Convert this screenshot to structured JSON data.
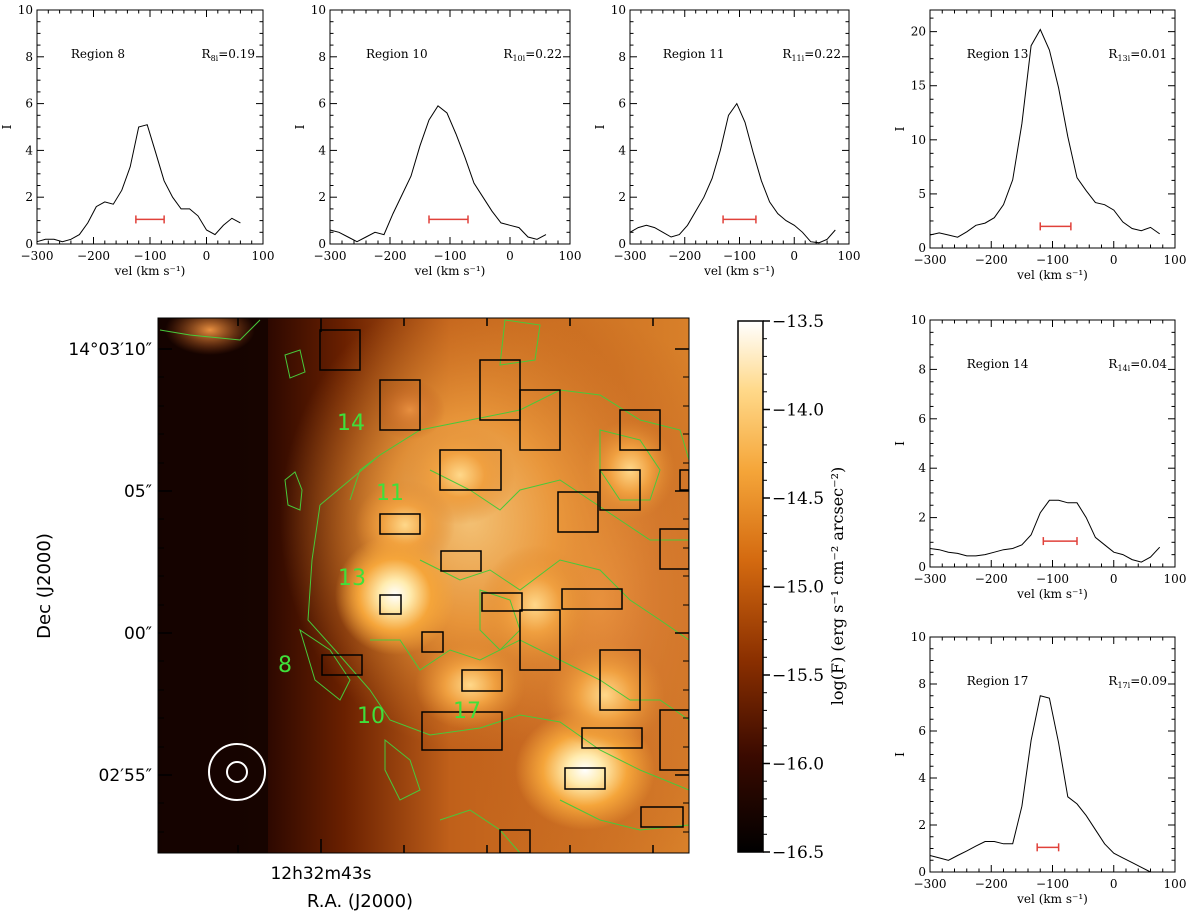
{
  "colors": {
    "profile_line": "#000000",
    "width_bar": "#e0413a",
    "contour_green": "#48c93a",
    "region_box": "#000000",
    "region_label": "#3fe03a",
    "beam": "#ffffff"
  },
  "chart_data": [
    {
      "type": "line",
      "id": "p8",
      "region_label": "Region  8",
      "ratio_label": "R8i=0.19",
      "xlabel": "vel  (km s⁻¹)",
      "ylabel": "I",
      "xlim": [
        -300,
        100
      ],
      "ylim": [
        0,
        10
      ],
      "xticks": [
        -300,
        -200,
        -100,
        0,
        100
      ],
      "yticks": [
        0,
        2,
        4,
        6,
        8,
        10
      ],
      "x": [
        -300,
        -285,
        -270,
        -255,
        -240,
        -225,
        -210,
        -195,
        -180,
        -165,
        -150,
        -135,
        -120,
        -105,
        -90,
        -75,
        -60,
        -45,
        -30,
        -15,
        0,
        15,
        30,
        45,
        60,
        75
      ],
      "y": [
        0.1,
        0.2,
        0.2,
        0.1,
        0.2,
        0.4,
        0.9,
        1.6,
        1.8,
        1.7,
        2.3,
        3.3,
        5.0,
        5.1,
        3.9,
        2.7,
        2.0,
        1.5,
        1.5,
        1.2,
        0.6,
        0.4,
        0.8,
        1.1,
        0.9,
        null
      ],
      "bar": [
        -125,
        -75
      ],
      "bar_y": 1.05
    },
    {
      "type": "line",
      "id": "p10",
      "region_label": "Region  10",
      "ratio_label": "R10i=0.22",
      "xlabel": "vel  (km s⁻¹)",
      "ylabel": "I",
      "xlim": [
        -300,
        100
      ],
      "ylim": [
        0,
        10
      ],
      "xticks": [
        -300,
        -200,
        -100,
        0,
        100
      ],
      "yticks": [
        0,
        2,
        4,
        6,
        8,
        10
      ],
      "x": [
        -300,
        -285,
        -270,
        -255,
        -240,
        -225,
        -210,
        -195,
        -180,
        -165,
        -150,
        -135,
        -120,
        -105,
        -90,
        -75,
        -60,
        -45,
        -30,
        -15,
        0,
        15,
        30,
        45,
        60,
        75
      ],
      "y": [
        0.6,
        0.5,
        0.3,
        0.1,
        0.3,
        0.5,
        0.4,
        1.3,
        2.1,
        2.9,
        4.2,
        5.3,
        5.9,
        5.6,
        4.7,
        3.7,
        2.6,
        2.0,
        1.4,
        0.9,
        0.8,
        0.7,
        0.3,
        0.2,
        0.4,
        null
      ],
      "bar": [
        -135,
        -70
      ],
      "bar_y": 1.05
    },
    {
      "type": "line",
      "id": "p11",
      "region_label": "Region  11",
      "ratio_label": "R11i=0.22",
      "xlabel": "vel  (km s⁻¹)",
      "ylabel": "I",
      "xlim": [
        -300,
        100
      ],
      "ylim": [
        0,
        10
      ],
      "xticks": [
        -300,
        -200,
        -100,
        0,
        100
      ],
      "yticks": [
        0,
        2,
        4,
        6,
        8,
        10
      ],
      "x": [
        -300,
        -285,
        -270,
        -255,
        -240,
        -225,
        -210,
        -195,
        -180,
        -165,
        -150,
        -135,
        -120,
        -105,
        -90,
        -75,
        -60,
        -45,
        -30,
        -15,
        0,
        15,
        30,
        45,
        60,
        75
      ],
      "y": [
        0.5,
        0.7,
        0.8,
        0.7,
        0.5,
        0.3,
        0.4,
        0.8,
        1.4,
        2.0,
        2.8,
        4.0,
        5.5,
        6.0,
        5.2,
        3.9,
        2.7,
        1.8,
        1.3,
        1.0,
        0.8,
        0.5,
        0.1,
        0.05,
        0.2,
        0.6
      ],
      "bar": [
        -130,
        -70
      ],
      "bar_y": 1.05
    },
    {
      "type": "line",
      "id": "p13",
      "region_label": "Region  13",
      "ratio_label": "R13i=0.01",
      "xlabel": "vel  (km s⁻¹)",
      "ylabel": "I",
      "xlim": [
        -300,
        100
      ],
      "ylim": [
        0,
        22
      ],
      "xticks": [
        -300,
        -200,
        -100,
        0,
        100
      ],
      "yticks": [
        0,
        5,
        10,
        15,
        20
      ],
      "x": [
        -300,
        -285,
        -270,
        -255,
        -240,
        -225,
        -210,
        -195,
        -180,
        -165,
        -150,
        -135,
        -120,
        -105,
        -90,
        -75,
        -60,
        -45,
        -30,
        -15,
        0,
        15,
        30,
        45,
        60,
        75
      ],
      "y": [
        1.2,
        1.4,
        1.2,
        1.0,
        1.5,
        2.1,
        2.3,
        2.8,
        4.0,
        6.3,
        11.5,
        18.7,
        20.2,
        18.3,
        14.8,
        10.3,
        6.5,
        5.3,
        4.2,
        4.0,
        3.5,
        2.4,
        1.8,
        1.6,
        1.9,
        1.3
      ],
      "bar": [
        -120,
        -70
      ],
      "bar_y": 2.0
    },
    {
      "type": "line",
      "id": "p14",
      "region_label": "Region  14",
      "ratio_label": "R14i=0.04",
      "xlabel": "vel  (km s⁻¹)",
      "ylabel": "I",
      "xlim": [
        -300,
        100
      ],
      "ylim": [
        0,
        10
      ],
      "xticks": [
        -300,
        -200,
        -100,
        0,
        100
      ],
      "yticks": [
        0,
        2,
        4,
        6,
        8,
        10
      ],
      "x": [
        -300,
        -285,
        -270,
        -255,
        -240,
        -225,
        -210,
        -195,
        -180,
        -165,
        -150,
        -135,
        -120,
        -105,
        -90,
        -75,
        -60,
        -45,
        -30,
        -15,
        0,
        15,
        30,
        45,
        60,
        75
      ],
      "y": [
        0.75,
        0.7,
        0.6,
        0.55,
        0.45,
        0.45,
        0.5,
        0.6,
        0.7,
        0.75,
        0.9,
        1.3,
        2.2,
        2.7,
        2.7,
        2.6,
        2.6,
        2.0,
        1.2,
        0.9,
        0.6,
        0.5,
        0.3,
        0.2,
        0.4,
        0.8
      ],
      "bar": [
        -115,
        -60
      ],
      "bar_y": 1.05
    },
    {
      "type": "line",
      "id": "p17",
      "region_label": "Region  17",
      "ratio_label": "R17i=0.09",
      "xlabel": "vel  (km s⁻¹)",
      "ylabel": "I",
      "xlim": [
        -300,
        100
      ],
      "ylim": [
        0,
        10
      ],
      "xticks": [
        -300,
        -200,
        -100,
        0,
        100
      ],
      "yticks": [
        0,
        2,
        4,
        6,
        8,
        10
      ],
      "x": [
        -300,
        -285,
        -270,
        -255,
        -240,
        -225,
        -210,
        -195,
        -180,
        -165,
        -150,
        -135,
        -120,
        -105,
        -90,
        -75,
        -60,
        -45,
        -30,
        -15,
        0,
        15,
        30,
        45,
        60,
        75
      ],
      "y": [
        0.7,
        0.6,
        0.5,
        0.7,
        0.9,
        1.1,
        1.3,
        1.3,
        1.2,
        1.2,
        2.8,
        5.6,
        7.5,
        7.4,
        5.5,
        3.2,
        2.9,
        2.4,
        1.8,
        1.2,
        0.8,
        0.6,
        0.4,
        0.2,
        0.0,
        null
      ],
      "bar": [
        -125,
        -90
      ],
      "bar_y": 1.05
    },
    {
      "type": "heatmap",
      "id": "map",
      "xlabel": "R.A. (J2000)",
      "ylabel": "Dec (J2000)",
      "xtick_label": "12h32m43s",
      "ytick_labels": [
        "14°03′10″",
        "05″",
        "00″",
        "02′55″"
      ],
      "colorbar": {
        "label": "log(F)  (erg s⁻¹ cm⁻² arcsec⁻²)",
        "ticks": [
          "−13.5",
          "−14.0",
          "−14.5",
          "−15.0",
          "−15.5",
          "−16.0",
          "−16.5"
        ],
        "range": [
          -16.5,
          -13.5
        ]
      },
      "region_labels": [
        "14",
        "11",
        "13",
        "8",
        "10",
        "17"
      ]
    }
  ]
}
